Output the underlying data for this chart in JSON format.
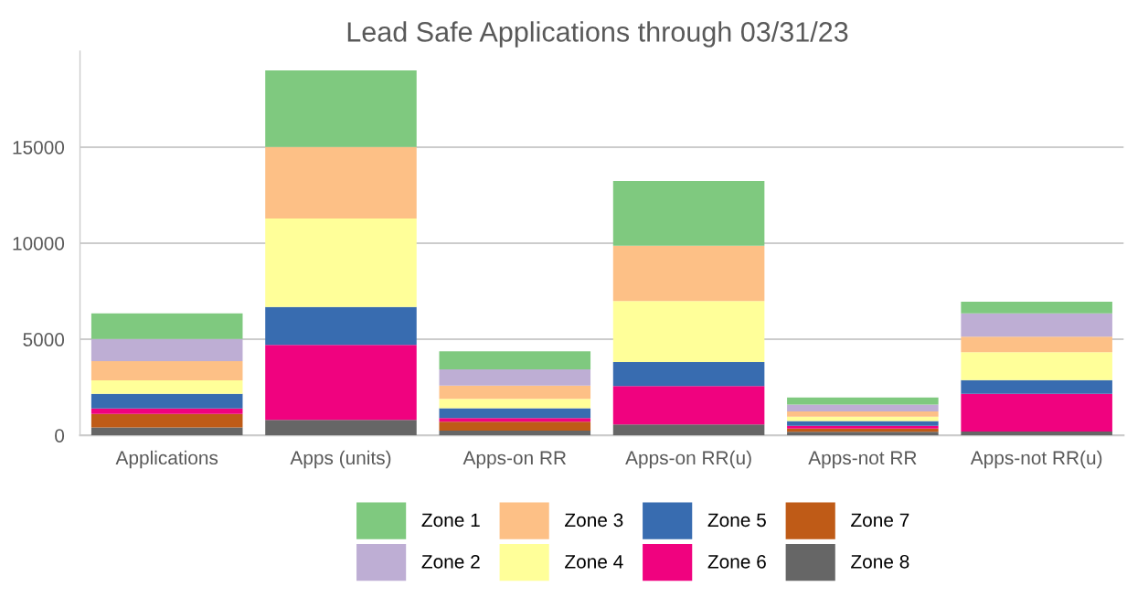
{
  "chart_data": {
    "type": "bar",
    "title": "Lead Safe Applications through 03/31/23",
    "stacked": true,
    "categories": [
      "Applications",
      "Apps (units)",
      "Apps-on RR",
      "Apps-on RR(u)",
      "Apps-not RR",
      "Apps-not RR(u)"
    ],
    "series": [
      {
        "name": "Zone 8",
        "color": "#666666",
        "values": [
          410,
          800,
          250,
          570,
          190,
          200
        ]
      },
      {
        "name": "Zone 7",
        "color": "#bf5b17",
        "values": [
          700,
          null,
          460,
          null,
          160,
          null
        ]
      },
      {
        "name": "Zone 6",
        "color": "#f0027f",
        "values": [
          290,
          3900,
          190,
          1990,
          140,
          1960
        ]
      },
      {
        "name": "Zone 5",
        "color": "#386cb0",
        "values": [
          760,
          1980,
          510,
          1250,
          260,
          710
        ]
      },
      {
        "name": "Zone 4",
        "color": "#ffff99",
        "values": [
          700,
          4610,
          490,
          3180,
          220,
          1450
        ]
      },
      {
        "name": "Zone 3",
        "color": "#fdc086",
        "values": [
          1000,
          3720,
          690,
          2880,
          270,
          810
        ]
      },
      {
        "name": "Zone 2",
        "color": "#beaed4",
        "values": [
          1150,
          null,
          840,
          null,
          360,
          1220
        ]
      },
      {
        "name": "Zone 1",
        "color": "#7fc97f",
        "values": [
          1340,
          3980,
          940,
          3370,
          370,
          600
        ]
      }
    ],
    "ylim": [
      0,
      20000
    ],
    "yticks": [
      0,
      5000,
      10000,
      15000
    ],
    "grid": "y",
    "legend": "bottom"
  }
}
